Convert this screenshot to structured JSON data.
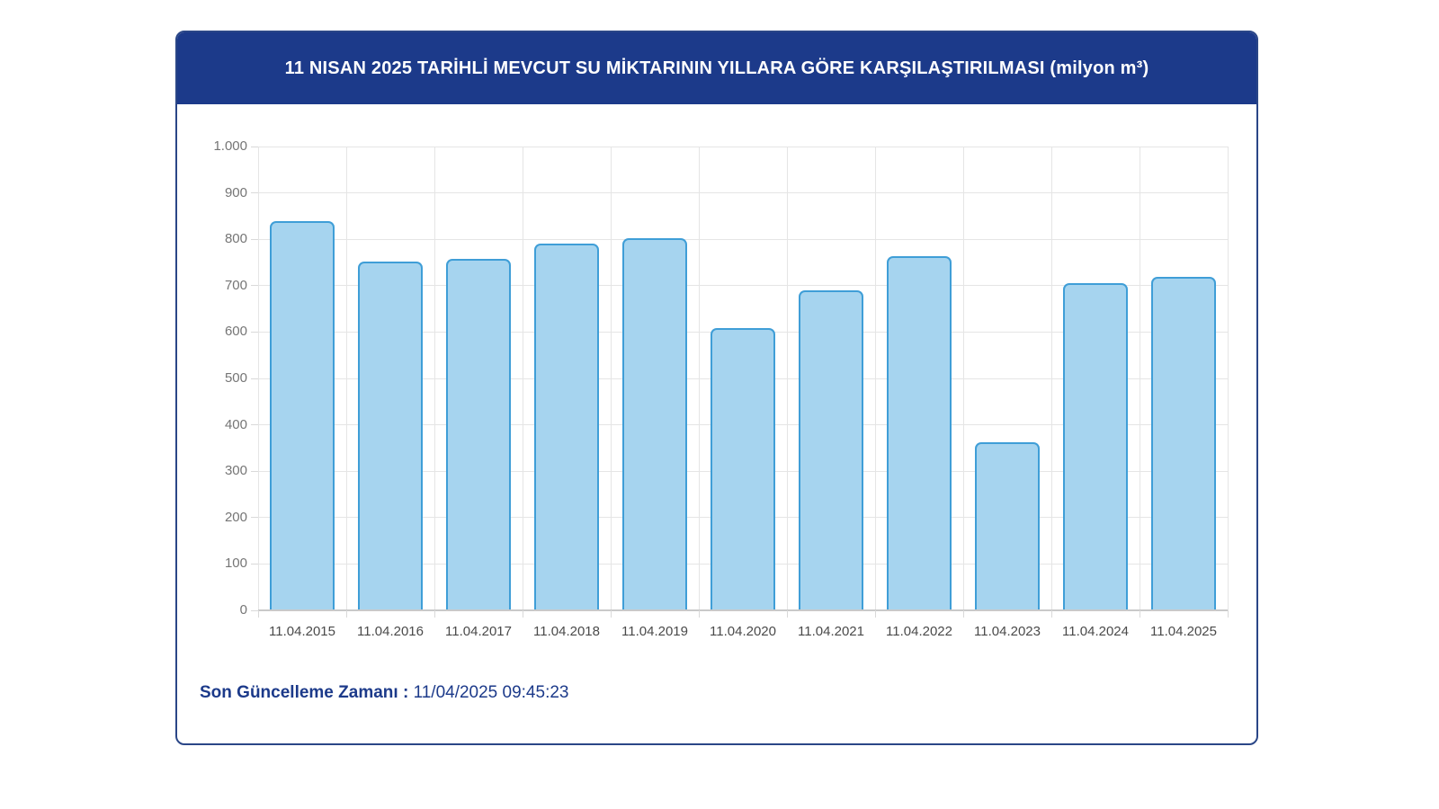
{
  "card": {
    "title": "11 NISAN 2025 TARİHLİ MEVCUT SU MİKTARININ YILLARA GÖRE KARŞILAŞTIRILMASI (milyon m³)",
    "footer": {
      "label": "Son Güncelleme Zamanı",
      "separator": " : ",
      "value": "11/04/2025 09:45:23"
    }
  },
  "colors": {
    "header_bg": "#1c3a8a",
    "card_border": "#2a4687",
    "title_text": "#ffffff",
    "bar_fill": "#a6d4ef",
    "bar_border": "#3f9ed7",
    "grid": "#e5e5e5",
    "axis": "#c9c9c9",
    "tick": "#d9d9d9",
    "ylabel_text": "#757575",
    "xlabel_text": "#4a4a4a",
    "footer_text": "#1c3a8a"
  },
  "chart_data": {
    "type": "bar",
    "title": "11 NISAN 2025 TARİHLİ MEVCUT SU MİKTARININ YILLARA GÖRE KARŞILAŞTIRILMASI (milyon m³)",
    "xlabel": "",
    "ylabel": "",
    "categories": [
      "11.04.2015",
      "11.04.2016",
      "11.04.2017",
      "11.04.2018",
      "11.04.2019",
      "11.04.2020",
      "11.04.2021",
      "11.04.2022",
      "11.04.2023",
      "11.04.2024",
      "11.04.2025"
    ],
    "values": [
      840,
      751,
      757,
      790,
      802,
      608,
      689,
      764,
      362,
      705,
      719
    ],
    "unit": "milyon m³",
    "ylim": [
      0,
      1000
    ],
    "ytick_step": 100,
    "ytick_labels_bottom_up": [
      "0",
      "100",
      "200",
      "300",
      "400",
      "500",
      "600",
      "700",
      "800",
      "900",
      "1.000"
    ],
    "grid": "on",
    "legend": "none"
  }
}
